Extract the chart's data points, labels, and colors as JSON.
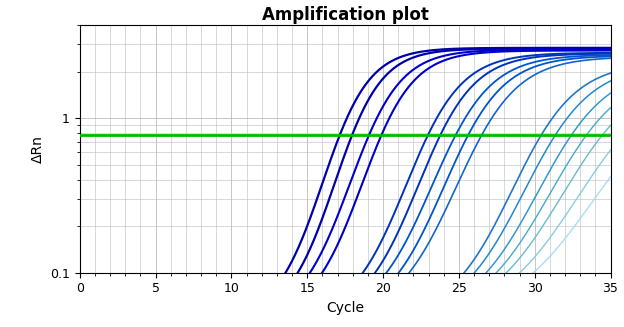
{
  "title": "Amplification plot",
  "xlabel": "Cycle",
  "ylabel": "ΔRn",
  "xlim": [
    0,
    35
  ],
  "ylim_log": [
    0.1,
    4.0
  ],
  "threshold_y": 0.78,
  "threshold_color": "#00bb00",
  "threshold_lw": 2.0,
  "background_color": "#ffffff",
  "grid_color": "#bbbbbb",
  "title_fontsize": 12,
  "title_fontweight": "bold",
  "axis_fontsize": 10,
  "tick_fontsize": 9,
  "curves": [
    {
      "color": "#0000aa",
      "lw": 1.6,
      "ct": 16.0,
      "plateau": 2.85,
      "steepness": 0.65
    },
    {
      "color": "#0000aa",
      "lw": 1.6,
      "ct": 16.8,
      "plateau": 2.82,
      "steepness": 0.65
    },
    {
      "color": "#0000cc",
      "lw": 1.5,
      "ct": 17.8,
      "plateau": 2.78,
      "steepness": 0.6
    },
    {
      "color": "#0000cc",
      "lw": 1.5,
      "ct": 18.6,
      "plateau": 2.74,
      "steepness": 0.6
    },
    {
      "color": "#0033bb",
      "lw": 1.4,
      "ct": 21.5,
      "plateau": 2.65,
      "steepness": 0.55
    },
    {
      "color": "#0033bb",
      "lw": 1.4,
      "ct": 22.3,
      "plateau": 2.62,
      "steepness": 0.55
    },
    {
      "color": "#0055cc",
      "lw": 1.3,
      "ct": 23.2,
      "plateau": 2.58,
      "steepness": 0.52
    },
    {
      "color": "#0055cc",
      "lw": 1.3,
      "ct": 24.0,
      "plateau": 2.54,
      "steepness": 0.52
    },
    {
      "color": "#1166cc",
      "lw": 1.2,
      "ct": 24.8,
      "plateau": 2.5,
      "steepness": 0.5
    },
    {
      "color": "#2277cc",
      "lw": 1.2,
      "ct": 28.5,
      "plateau": 2.3,
      "steepness": 0.48
    },
    {
      "color": "#2288cc",
      "lw": 1.1,
      "ct": 29.3,
      "plateau": 2.25,
      "steepness": 0.46
    },
    {
      "color": "#3399cc",
      "lw": 1.1,
      "ct": 30.2,
      "plateau": 2.18,
      "steepness": 0.44
    },
    {
      "color": "#44aacc",
      "lw": 1.0,
      "ct": 31.0,
      "plateau": 2.1,
      "steepness": 0.42
    },
    {
      "color": "#66bbcc",
      "lw": 1.0,
      "ct": 31.8,
      "plateau": 2.0,
      "steepness": 0.4
    },
    {
      "color": "#88ccdd",
      "lw": 1.0,
      "ct": 32.8,
      "plateau": 1.85,
      "steepness": 0.38
    },
    {
      "color": "#aaddee",
      "lw": 1.0,
      "ct": 33.8,
      "plateau": 1.65,
      "steepness": 0.36
    }
  ]
}
